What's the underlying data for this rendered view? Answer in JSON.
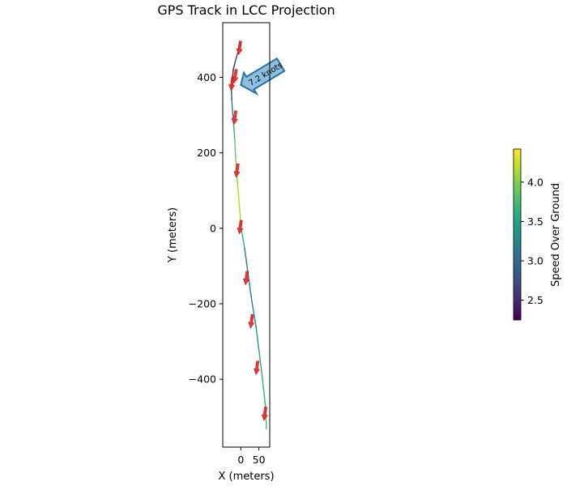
{
  "chart_data": {
    "type": "line",
    "title": "GPS Track in LCC Projection",
    "xlabel": "X (meters)",
    "ylabel": "Y (meters)",
    "xlim": [
      -50,
      80
    ],
    "ylim": [
      -580,
      545
    ],
    "x_ticks": [
      0,
      50
    ],
    "x_tick_labels": [
      "0",
      "50"
    ],
    "y_ticks": [
      -400,
      -200,
      0,
      200,
      400
    ],
    "y_tick_labels": [
      "−400",
      "−200",
      "0",
      "200",
      "400"
    ],
    "grid": false,
    "colormap": "viridis",
    "track": {
      "x": [
        71,
        68,
        60,
        51,
        42,
        30,
        20,
        10,
        1,
        -4,
        -9,
        -14,
        -17,
        -22,
        -25,
        -26,
        -25,
        -23,
        -21,
        -16,
        -10,
        -5,
        0
      ],
      "y": [
        -532,
        -470,
        -400,
        -330,
        -260,
        -190,
        -120,
        -50,
        0,
        60,
        120,
        180,
        240,
        300,
        340,
        370,
        385,
        400,
        420,
        440,
        460,
        480,
        490
      ],
      "speed": [
        3.8,
        3.7,
        3.6,
        3.5,
        3.3,
        3.2,
        3.1,
        3.2,
        4.1,
        4.2,
        4.1,
        4.0,
        3.8,
        3.5,
        2.9,
        2.6,
        2.5,
        2.4,
        2.4,
        2.5,
        2.7,
        2.9,
        3.0
      ]
    },
    "direction_arrows": {
      "color": "#e8231f",
      "x": [
        66,
        44,
        29,
        15,
        -2,
        -11,
        -17,
        -25,
        -16,
        -4
      ],
      "y": [
        -495,
        -373,
        -250,
        -135,
        0,
        150,
        290,
        380,
        400,
        475
      ]
    },
    "annotation": {
      "text": "7.2 knots",
      "x": 0,
      "y": 380,
      "fill": "#8ebfe0",
      "edge": "#2a6fa8"
    },
    "colorbar": {
      "label": "Speed Over Ground",
      "min": 2.25,
      "max": 4.42,
      "ticks": [
        2.5,
        3.0,
        3.5,
        4.0
      ],
      "tick_labels": [
        "2.5",
        "3.0",
        "3.5",
        "4.0"
      ]
    }
  }
}
